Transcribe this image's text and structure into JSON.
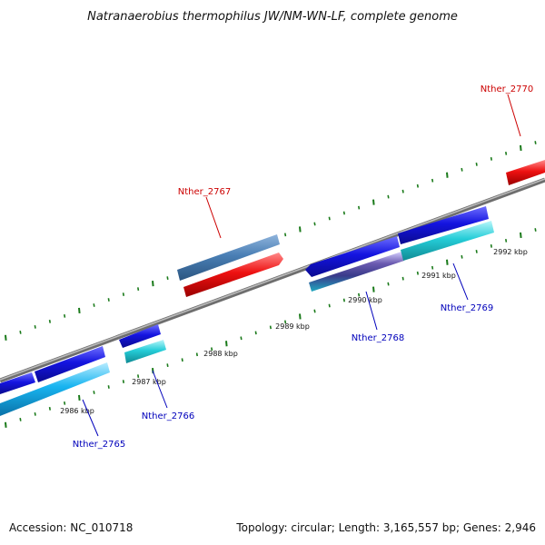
{
  "title": "Natranaerobius thermophilus JW/NM-WN-LF, complete genome",
  "footer": {
    "accession": "Accession: NC_010718",
    "summary": "Topology: circular; Length: 3,165,557 bp; Genes: 2,946"
  },
  "colors": {
    "backbone": "#8c8c8c",
    "ticks": "#1a7a1a",
    "forward_cds": "#1414e0",
    "forward_alt": "#4a7fb5",
    "reverse_cds": "#ee1111",
    "reverse_alt": "#25cdd8",
    "label_forward": "#cc0000",
    "label_reverse": "#0000bb"
  },
  "tick_labels": [
    "2986 kbp",
    "2987 kbp",
    "2988 kbp",
    "2989 kbp",
    "2990 kbp",
    "2991 kbp",
    "2992 kbp"
  ],
  "gene_labels": [
    {
      "text": "Nther_2765",
      "strand": "reverse"
    },
    {
      "text": "Nther_2766",
      "strand": "reverse"
    },
    {
      "text": "Nther_2767",
      "strand": "forward"
    },
    {
      "text": "Nther_2768",
      "strand": "reverse"
    },
    {
      "text": "Nther_2769",
      "strand": "reverse"
    },
    {
      "text": "Nther_2770",
      "strand": "forward"
    }
  ]
}
